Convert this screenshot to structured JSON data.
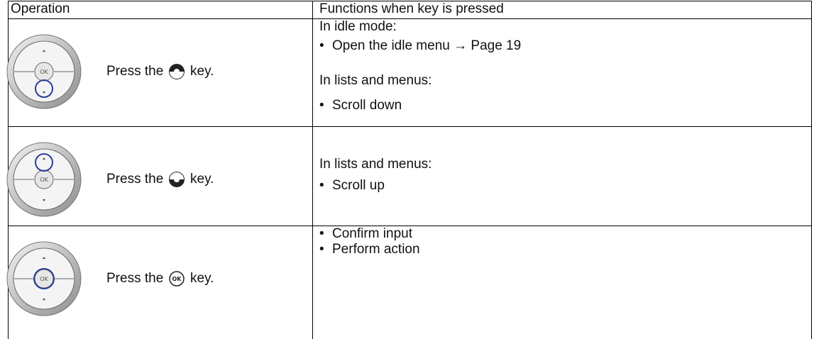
{
  "header": {
    "operation": "Operation",
    "functions": "Functions when key is pressed"
  },
  "rows": [
    {
      "operation": {
        "before": "Press the",
        "after": "key."
      },
      "functions": [
        {
          "heading": "In idle mode:",
          "bullets": [
            "Open the idle menu → Page 19"
          ]
        },
        {
          "heading": "In lists and menus:",
          "bullets": [
            "Scroll down"
          ]
        }
      ]
    },
    {
      "operation": {
        "before": "Press the",
        "after": "key."
      },
      "functions": [
        {
          "heading": "In lists and menus:",
          "bullets": [
            "Scroll up"
          ]
        }
      ]
    },
    {
      "operation": {
        "before": "Press the",
        "after": "key."
      },
      "functions": [
        {
          "bullets": [
            "Confirm input",
            "Perform action"
          ]
        }
      ]
    }
  ]
}
